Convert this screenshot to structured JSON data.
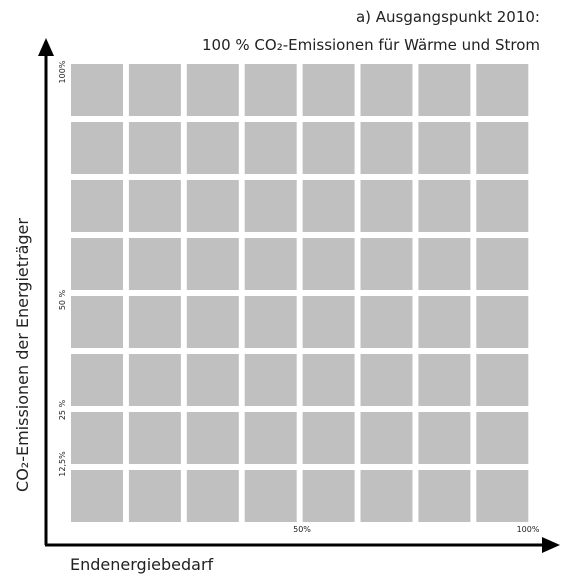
{
  "title": [
    "a) Ausgangspunkt 2010:",
    "100 % CO₂-Emissionen für Wärme und Strom"
  ],
  "y_axis_label": "CO₂-Emissionen der Energieträger",
  "x_axis_label": "Endenergiebedarf",
  "y_ticks": [
    "100%",
    "50 %",
    "25 %",
    "12,5%"
  ],
  "x_ticks": [
    "50%",
    "100%"
  ]
}
